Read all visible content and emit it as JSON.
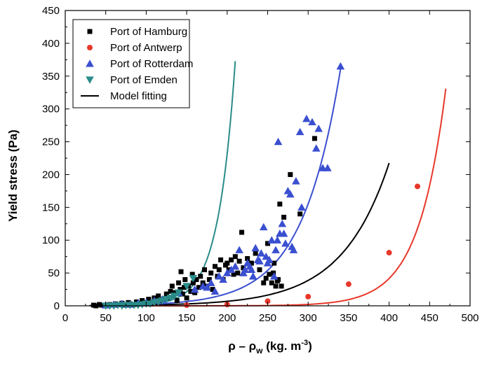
{
  "chart_data": {
    "type": "scatter",
    "title": "",
    "xlabel": "ρ – ρ",
    "xlabel_subscript": "w",
    "xlabel_units": " (kg. m",
    "xlabel_units_sup": "-3",
    "xlabel_units_close": ")",
    "ylabel": "Yield stress (Pa)",
    "xlim": [
      0,
      500
    ],
    "ylim": [
      0,
      450
    ],
    "x_ticks": [
      "0",
      "50",
      "100",
      "150",
      "200",
      "250",
      "300",
      "350",
      "400",
      "450",
      "500"
    ],
    "y_ticks": [
      "0",
      "50",
      "100",
      "150",
      "200",
      "250",
      "300",
      "350",
      "400",
      "450"
    ],
    "grid": false,
    "legend_position": "top-left",
    "series": [
      {
        "name": "Port of Hamburg",
        "marker": "square",
        "color": "#000000",
        "points": [
          [
            35,
            1
          ],
          [
            38,
            0
          ],
          [
            42,
            2
          ],
          [
            45,
            1
          ],
          [
            50,
            0
          ],
          [
            55,
            2
          ],
          [
            58,
            1
          ],
          [
            62,
            3
          ],
          [
            65,
            2
          ],
          [
            70,
            4
          ],
          [
            72,
            1
          ],
          [
            78,
            5
          ],
          [
            80,
            3
          ],
          [
            85,
            2
          ],
          [
            88,
            6
          ],
          [
            92,
            4
          ],
          [
            95,
            8
          ],
          [
            100,
            5
          ],
          [
            103,
            10
          ],
          [
            105,
            3
          ],
          [
            110,
            12
          ],
          [
            112,
            6
          ],
          [
            115,
            15
          ],
          [
            118,
            8
          ],
          [
            120,
            10
          ],
          [
            125,
            18
          ],
          [
            127,
            12
          ],
          [
            130,
            22
          ],
          [
            132,
            30
          ],
          [
            134,
            15
          ],
          [
            136,
            20
          ],
          [
            138,
            8
          ],
          [
            140,
            35
          ],
          [
            142,
            25
          ],
          [
            143,
            52
          ],
          [
            145,
            18
          ],
          [
            147,
            28
          ],
          [
            148,
            40
          ],
          [
            150,
            12
          ],
          [
            152,
            30
          ],
          [
            155,
            22
          ],
          [
            157,
            48
          ],
          [
            158,
            35
          ],
          [
            160,
            20
          ],
          [
            162,
            40
          ],
          [
            165,
            28
          ],
          [
            167,
            45
          ],
          [
            170,
            35
          ],
          [
            172,
            55
          ],
          [
            175,
            30
          ],
          [
            178,
            40
          ],
          [
            180,
            50
          ],
          [
            182,
            25
          ],
          [
            185,
            60
          ],
          [
            188,
            45
          ],
          [
            190,
            55
          ],
          [
            192,
            70
          ],
          [
            195,
            40
          ],
          [
            198,
            62
          ],
          [
            200,
            65
          ],
          [
            202,
            55
          ],
          [
            205,
            70
          ],
          [
            208,
            48
          ],
          [
            210,
            75
          ],
          [
            213,
            50
          ],
          [
            215,
            68
          ],
          [
            218,
            112
          ],
          [
            220,
            58
          ],
          [
            225,
            72
          ],
          [
            230,
            65
          ],
          [
            235,
            80
          ],
          [
            240,
            55
          ],
          [
            245,
            35
          ],
          [
            248,
            42
          ],
          [
            250,
            95
          ],
          [
            252,
            48
          ],
          [
            255,
            35
          ],
          [
            257,
            50
          ],
          [
            258,
            65
          ],
          [
            260,
            30
          ],
          [
            262,
            38
          ],
          [
            263,
            40
          ],
          [
            265,
            155
          ],
          [
            267,
            30
          ],
          [
            270,
            135
          ],
          [
            278,
            200
          ],
          [
            290,
            140
          ],
          [
            308,
            255
          ]
        ]
      },
      {
        "name": "Port of Antwerp",
        "marker": "circle",
        "color": "#e8382a",
        "points": [
          [
            150,
            1
          ],
          [
            200,
            2
          ],
          [
            250,
            7
          ],
          [
            300,
            14
          ],
          [
            350,
            33
          ],
          [
            400,
            81
          ],
          [
            435,
            182
          ]
        ]
      },
      {
        "name": "Port of Rotterdam",
        "marker": "triangle-up",
        "color": "#3a4fd0",
        "points": [
          [
            50,
            1
          ],
          [
            60,
            2
          ],
          [
            70,
            3
          ],
          [
            80,
            2
          ],
          [
            90,
            4
          ],
          [
            100,
            5
          ],
          [
            110,
            8
          ],
          [
            120,
            10
          ],
          [
            140,
            20
          ],
          [
            160,
            25
          ],
          [
            170,
            30
          ],
          [
            175,
            28
          ],
          [
            180,
            35
          ],
          [
            185,
            22
          ],
          [
            190,
            45
          ],
          [
            195,
            40
          ],
          [
            200,
            50
          ],
          [
            205,
            55
          ],
          [
            210,
            60
          ],
          [
            215,
            85
          ],
          [
            220,
            50
          ],
          [
            222,
            55
          ],
          [
            225,
            65
          ],
          [
            228,
            60
          ],
          [
            230,
            55
          ],
          [
            232,
            45
          ],
          [
            235,
            88
          ],
          [
            238,
            70
          ],
          [
            240,
            68
          ],
          [
            242,
            80
          ],
          [
            245,
            120
          ],
          [
            248,
            75
          ],
          [
            250,
            65
          ],
          [
            252,
            70
          ],
          [
            255,
            100
          ],
          [
            258,
            45
          ],
          [
            260,
            85
          ],
          [
            262,
            100
          ],
          [
            263,
            250
          ],
          [
            265,
            110
          ],
          [
            268,
            125
          ],
          [
            270,
            110
          ],
          [
            272,
            95
          ],
          [
            275,
            175
          ],
          [
            278,
            170
          ],
          [
            280,
            90
          ],
          [
            282,
            85
          ],
          [
            285,
            190
          ],
          [
            290,
            265
          ],
          [
            292,
            150
          ],
          [
            298,
            285
          ],
          [
            305,
            280
          ],
          [
            310,
            240
          ],
          [
            313,
            270
          ],
          [
            318,
            210
          ],
          [
            324,
            210
          ],
          [
            340,
            365
          ]
        ]
      },
      {
        "name": "Port of Emden",
        "marker": "triangle-down",
        "color": "#2a8c8a",
        "points": [
          [
            50,
            0
          ],
          [
            55,
            0
          ],
          [
            60,
            0
          ],
          [
            65,
            1
          ],
          [
            70,
            0
          ],
          [
            75,
            1
          ],
          [
            80,
            1
          ],
          [
            85,
            1
          ],
          [
            90,
            1
          ],
          [
            95,
            2
          ],
          [
            100,
            3
          ],
          [
            105,
            3
          ],
          [
            110,
            5
          ],
          [
            115,
            6
          ],
          [
            120,
            8
          ],
          [
            125,
            10
          ],
          [
            130,
            12
          ],
          [
            135,
            15
          ],
          [
            140,
            20
          ],
          [
            150,
            30
          ],
          [
            158,
            42
          ]
        ]
      }
    ],
    "fits": [
      {
        "name": "Model fitting",
        "color": "#000000",
        "xrange": [
          30,
          400
        ],
        "base": 25,
        "a": 0.335,
        "b": 0.01727
      },
      {
        "color": "#3a4fd0",
        "xrange": [
          40,
          340
        ],
        "base": 50,
        "a": 0.79,
        "b": 0.02112
      },
      {
        "color": "#2a8c8a",
        "xrange": [
          40,
          210
        ],
        "base": 60,
        "a": 0.3,
        "b": 0.0475
      },
      {
        "color": "#e8382a",
        "xrange": [
          60,
          470
        ],
        "base": 100,
        "a": 0.0058,
        "b": 0.0296
      }
    ]
  },
  "legend": [
    {
      "name": "Port of Hamburg",
      "marker": "square",
      "color": "#000000"
    },
    {
      "name": "Port of Antwerp",
      "marker": "circle",
      "color": "#e8382a"
    },
    {
      "name": "Port of Rotterdam",
      "marker": "triangle-up",
      "color": "#3a4fd0"
    },
    {
      "name": "Port of Emden",
      "marker": "triangle-down",
      "color": "#2a8c8a"
    },
    {
      "name": "Model fitting",
      "marker": "line",
      "color": "#000000"
    }
  ]
}
